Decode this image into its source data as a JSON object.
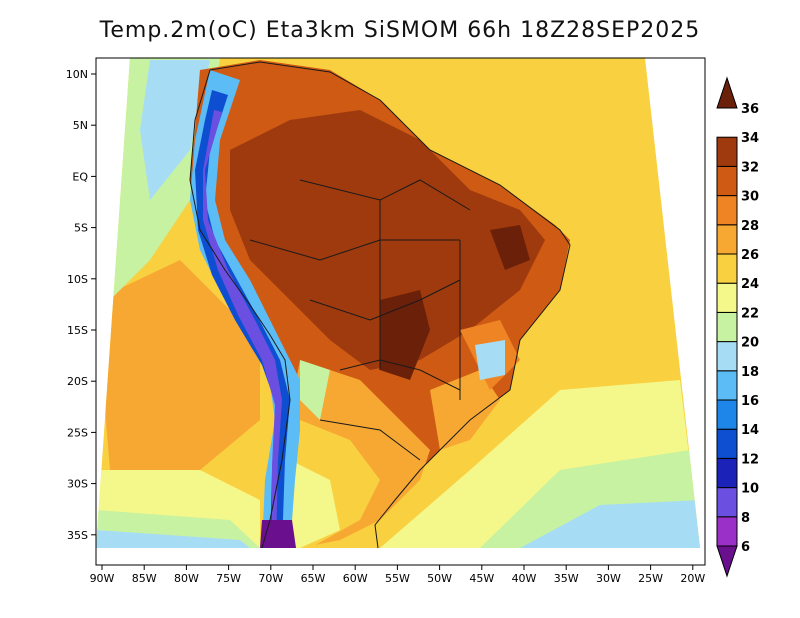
{
  "title": "Temp.2m(oC) Eta3km SiSMOM 66h 18Z28SEP2025",
  "lon_labels": [
    "90W",
    "85W",
    "80W",
    "75W",
    "70W",
    "65W",
    "60W",
    "55W",
    "50W",
    "45W",
    "40W",
    "35W",
    "30W",
    "25W",
    "20W"
  ],
  "lat_labels": [
    "10N",
    "5N",
    "EQ",
    "5S",
    "10S",
    "15S",
    "20S",
    "25S",
    "30S",
    "35S"
  ],
  "colorbar": {
    "levels": [
      "6",
      "8",
      "10",
      "12",
      "14",
      "16",
      "18",
      "20",
      "22",
      "24",
      "26",
      "28",
      "30",
      "32",
      "34",
      "36"
    ],
    "colors": [
      "#6a0f8e",
      "#9b30c8",
      "#6a4fe0",
      "#1a22b8",
      "#0d4fd0",
      "#1e86e8",
      "#5bbcf6",
      "#a7dcf5",
      "#c6f2a2",
      "#f4f78a",
      "#f9d040",
      "#f6a832",
      "#ef8424",
      "#cf5a14",
      "#9e3a0e",
      "#6b200a"
    ]
  }
}
